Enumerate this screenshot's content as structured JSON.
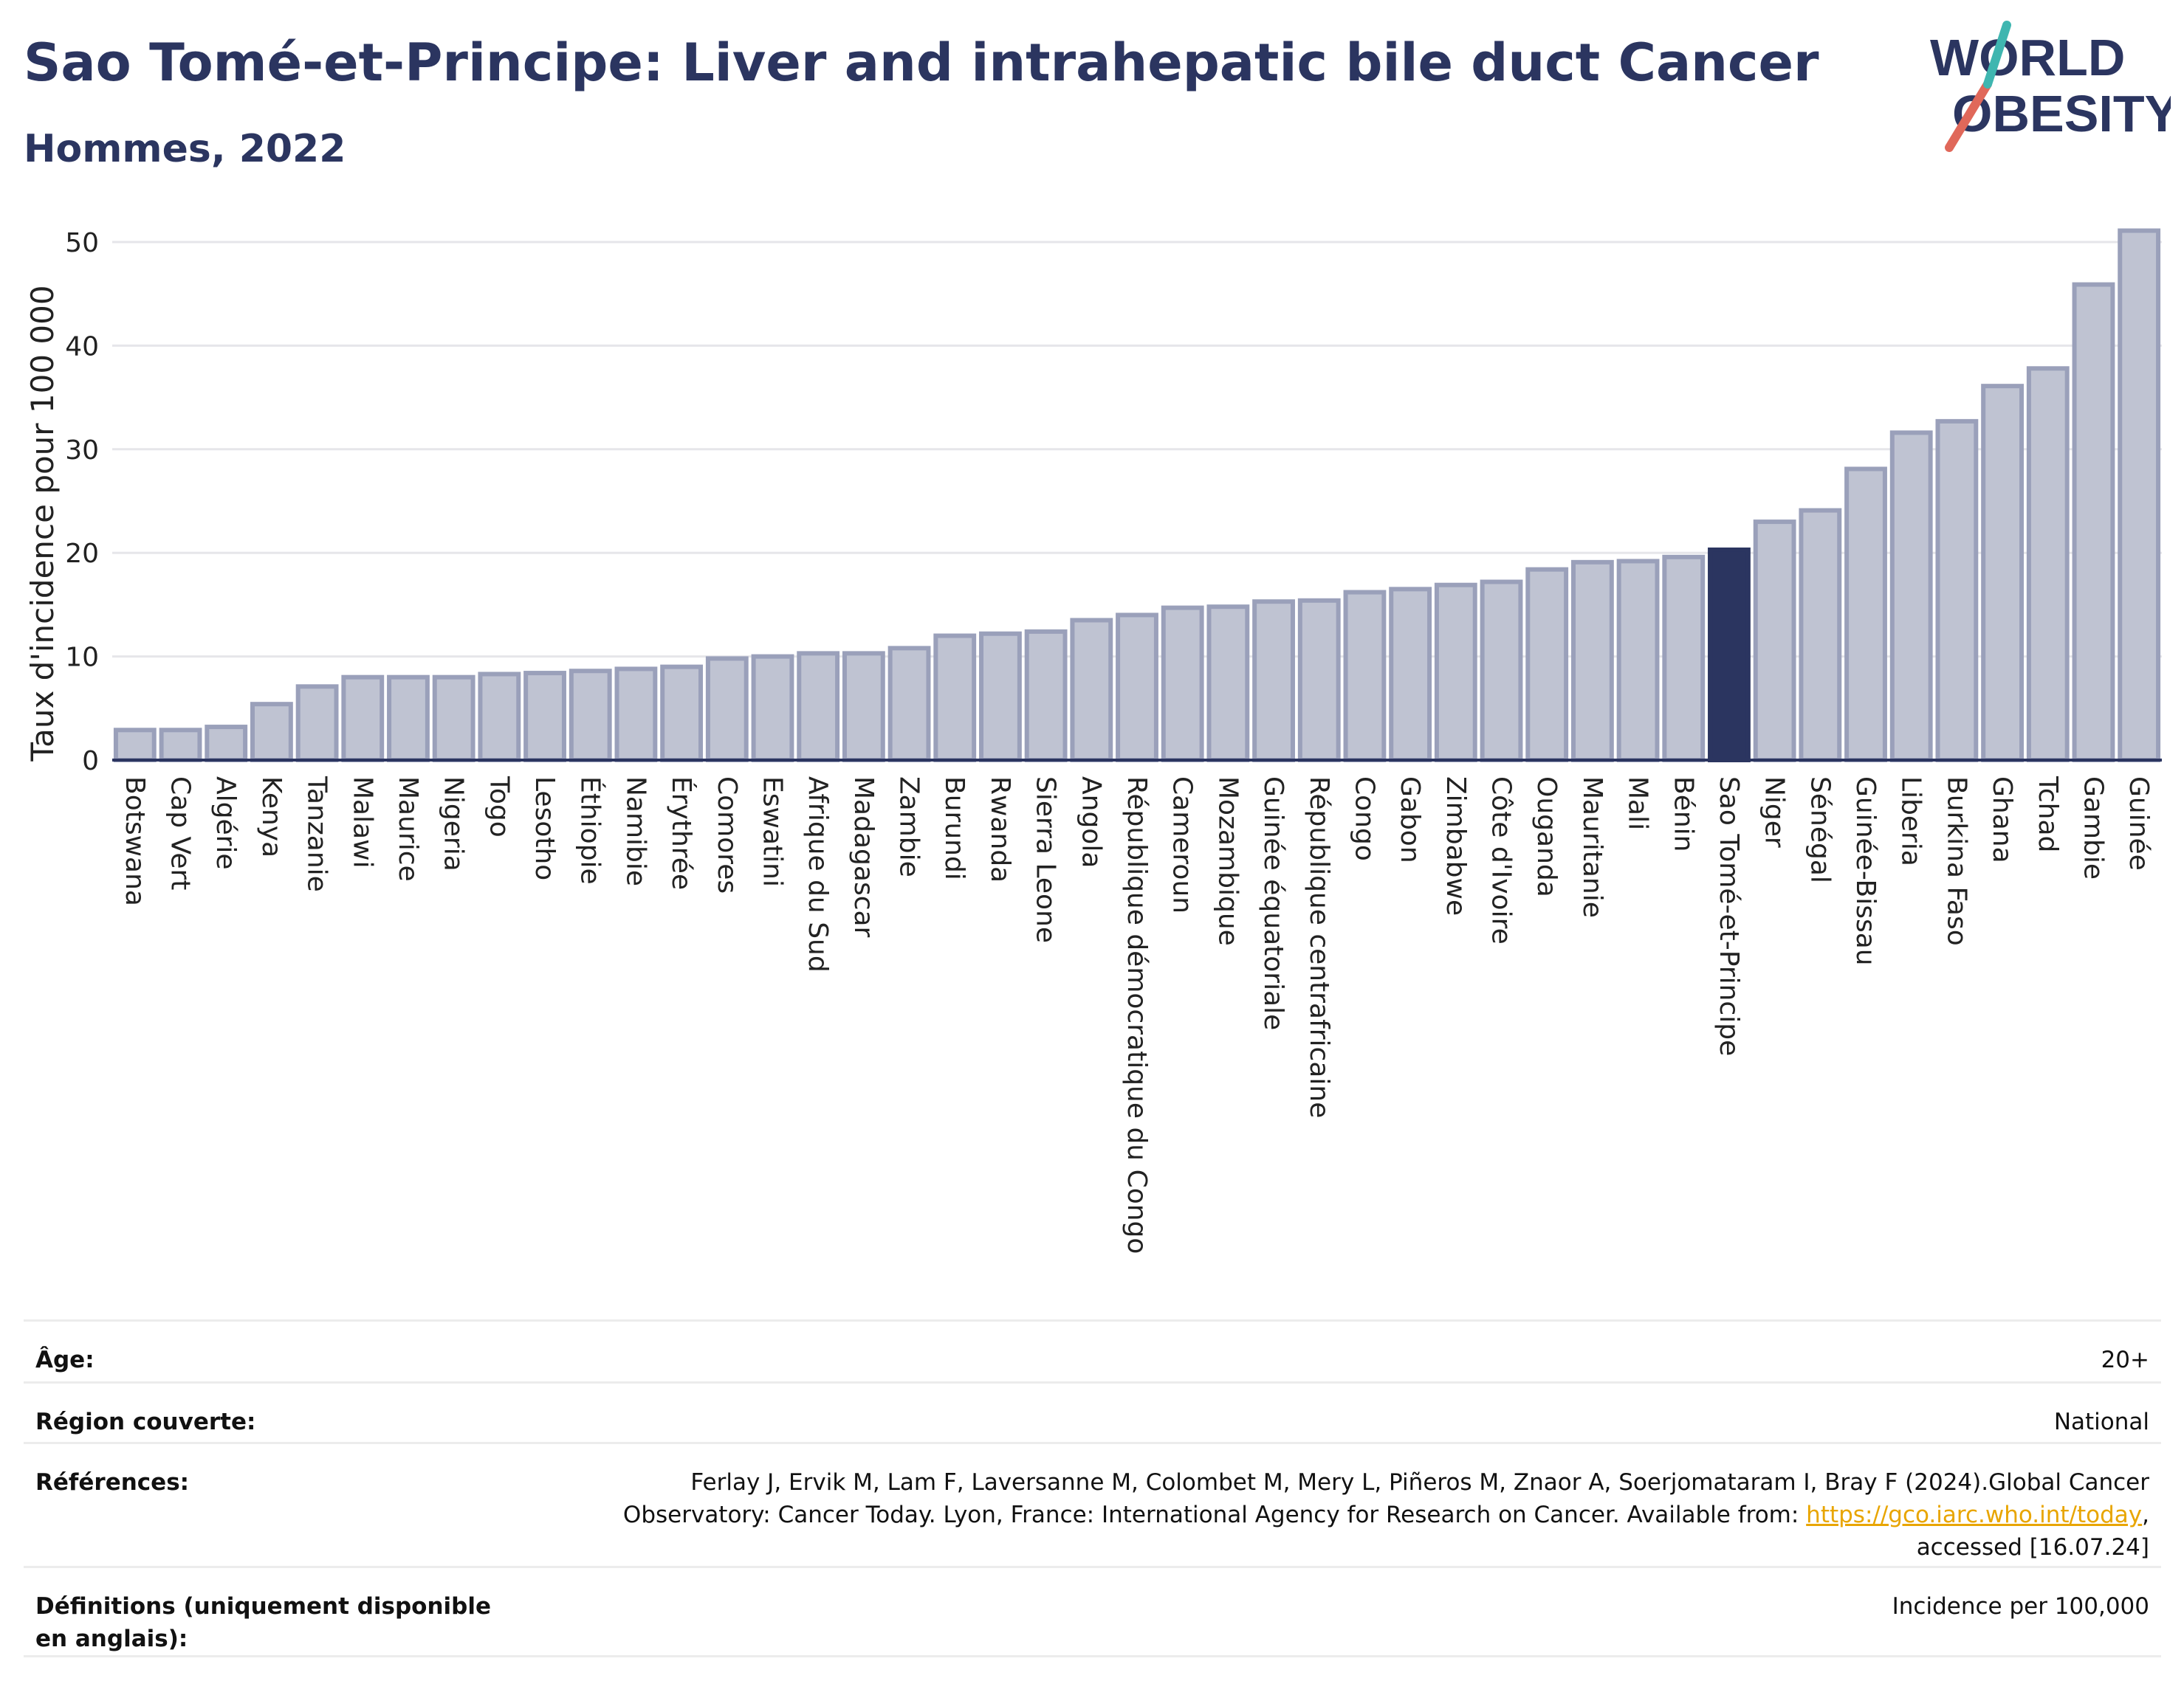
{
  "header": {
    "title": "Sao Tomé-et-Principe: Liver and intrahepatic bile duct Cancer",
    "subtitle": "Hommes, 2022",
    "logo_text_top": "WORLD",
    "logo_text_bottom": "OBESITY"
  },
  "colors": {
    "title": "#2b3560",
    "bar_fill": "#bfc3d2",
    "bar_stroke": "#9aa0ba",
    "highlight": "#2b3560",
    "logo_slash_red": "#e0685a",
    "logo_slash_teal": "#3fb6b0"
  },
  "chart_data": {
    "type": "bar",
    "title": "Sao Tomé-et-Principe: Liver and intrahepatic bile duct Cancer",
    "subtitle": "Hommes, 2022",
    "ylabel": "Taux d'incidence pour 100 000",
    "ylim": [
      0,
      53
    ],
    "yticks": [
      0,
      10,
      20,
      30,
      40,
      50
    ],
    "grid": true,
    "highlight": "Sao Tomé-et-Principe",
    "categories": [
      "Botswana",
      "Cap Vert",
      "Algérie",
      "Kenya",
      "Tanzanie",
      "Malawi",
      "Maurice",
      "Nigeria",
      "Togo",
      "Lesotho",
      "Éthiopie",
      "Namibie",
      "Érythrée",
      "Comores",
      "Eswatini",
      "Afrique du Sud",
      "Madagascar",
      "Zambie",
      "Burundi",
      "Rwanda",
      "Sierra Leone",
      "Angola",
      "République démocratique du Congo",
      "Cameroun",
      "Mozambique",
      "Guinée équatoriale",
      "République centrafricaine",
      "Congo",
      "Gabon",
      "Zimbabwe",
      "Côte d'Ivoire",
      "Ouganda",
      "Mauritanie",
      "Mali",
      "Bénin",
      "Sao Tomé-et-Principe",
      "Niger",
      "Sénégal",
      "Guinée-Bissau",
      "Liberia",
      "Burkina Faso",
      "Ghana",
      "Tchad",
      "Gambie",
      "Guinée"
    ],
    "values": [
      2.9,
      2.9,
      3.2,
      5.4,
      7.1,
      8.0,
      8.0,
      8.0,
      8.3,
      8.4,
      8.6,
      8.8,
      9.0,
      9.8,
      10.0,
      10.3,
      10.3,
      10.8,
      12.0,
      12.2,
      12.4,
      13.5,
      14.0,
      14.7,
      14.8,
      15.3,
      15.4,
      16.2,
      16.5,
      16.9,
      17.2,
      18.4,
      19.1,
      19.2,
      19.6,
      20.3,
      23.0,
      24.1,
      28.1,
      31.6,
      32.7,
      36.1,
      37.8,
      45.9,
      51.1
    ]
  },
  "meta": [
    {
      "key": "Âge:",
      "value": "20+"
    },
    {
      "key": "Région couverte:",
      "value": "National"
    },
    {
      "key": "Références:",
      "value_line1": "Ferlay J, Ervik M, Lam F, Laversanne M, Colombet M, Mery L, Piñeros M, Znaor A, Soerjomataram I, Bray F (2024).Global Cancer",
      "value_line2_pre": "Observatory: Cancer Today. Lyon, France: International Agency for Research on Cancer. Available from: ",
      "link": "https://gco.iarc.who.int/today",
      "value_line2_post": ",",
      "value_line3": "accessed [16.07.24]"
    },
    {
      "key": "Définitions (uniquement disponible en anglais):",
      "value": "Incidence per 100,000"
    }
  ]
}
